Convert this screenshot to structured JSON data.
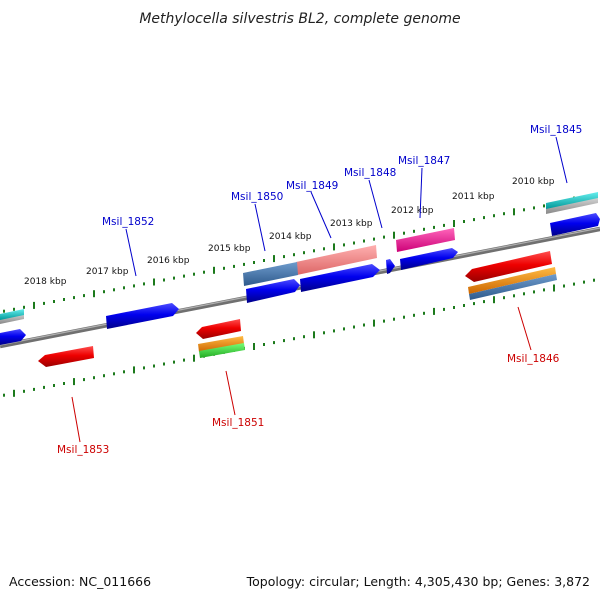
{
  "title": "Methylocella silvestris BL2, complete genome",
  "footer": {
    "accession": "Accession: NC_011666",
    "summary": "Topology: circular; Length: 4,305,430 bp; Genes: 3,872"
  },
  "colors": {
    "backbone": "#808080",
    "ruler": "#1c7a1c",
    "label_forward": "#0000cc",
    "label_reverse": "#cc0000"
  },
  "ticks": [
    {
      "label": "2010 kbp"
    },
    {
      "label": "2011 kbp"
    },
    {
      "label": "2012 kbp"
    },
    {
      "label": "2013 kbp"
    },
    {
      "label": "2014 kbp"
    },
    {
      "label": "2015 kbp"
    },
    {
      "label": "2016 kbp"
    },
    {
      "label": "2017 kbp"
    },
    {
      "label": "2018 kbp"
    }
  ],
  "genes": [
    {
      "label": "Msil_1845",
      "strand": "forward"
    },
    {
      "label": "Msil_1846",
      "strand": "reverse"
    },
    {
      "label": "Msil_1847",
      "strand": "forward"
    },
    {
      "label": "Msil_1848",
      "strand": "forward"
    },
    {
      "label": "Msil_1849",
      "strand": "forward"
    },
    {
      "label": "Msil_1850",
      "strand": "forward"
    },
    {
      "label": "Msil_1851",
      "strand": "reverse"
    },
    {
      "label": "Msil_1852",
      "strand": "forward"
    },
    {
      "label": "Msil_1853",
      "strand": "reverse"
    }
  ]
}
